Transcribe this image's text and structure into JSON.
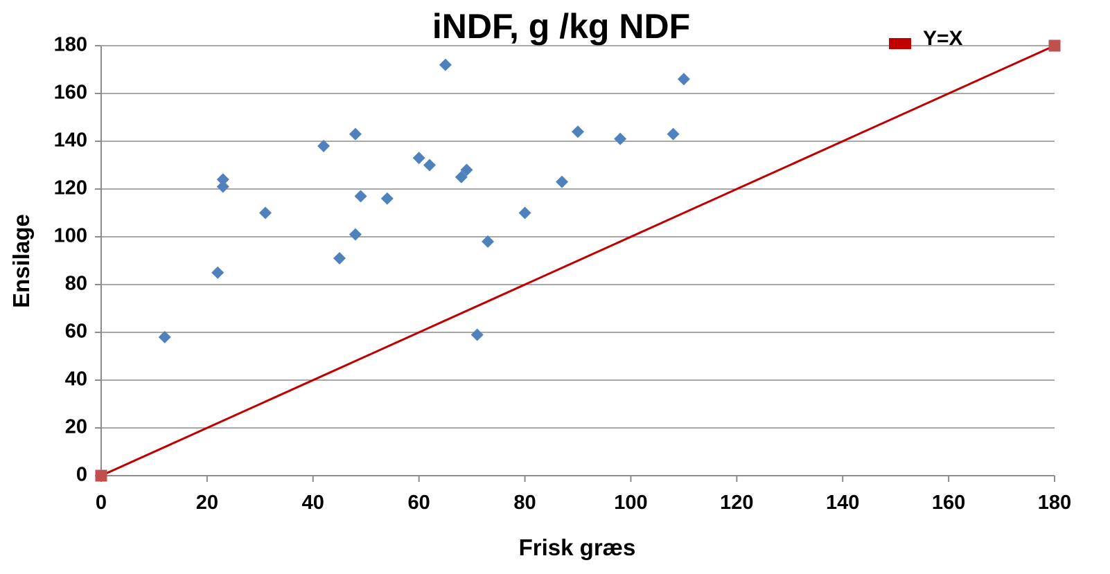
{
  "chart_data": {
    "type": "scatter",
    "title": "iNDF, g /kg NDF",
    "xlabel": "Frisk græs",
    "ylabel": "Ensilage",
    "xlim": [
      0,
      180
    ],
    "ylim": [
      0,
      180
    ],
    "x_ticks": [
      "0",
      "20",
      "40",
      "60",
      "80",
      "100",
      "120",
      "140",
      "160",
      "180"
    ],
    "y_ticks": [
      "0",
      "20",
      "40",
      "60",
      "80",
      "100",
      "120",
      "140",
      "160",
      "180"
    ],
    "grid": "horizontal",
    "legend": {
      "position": "top-right",
      "entries": [
        "Y=X"
      ]
    },
    "series": [
      {
        "marker": "diamond",
        "color": "#4f81bd",
        "points": [
          {
            "x": 12,
            "y": 58
          },
          {
            "x": 22,
            "y": 85
          },
          {
            "x": 23,
            "y": 124
          },
          {
            "x": 23,
            "y": 121
          },
          {
            "x": 31,
            "y": 110
          },
          {
            "x": 42,
            "y": 138
          },
          {
            "x": 45,
            "y": 91
          },
          {
            "x": 48,
            "y": 143
          },
          {
            "x": 48,
            "y": 101
          },
          {
            "x": 49,
            "y": 117
          },
          {
            "x": 54,
            "y": 116
          },
          {
            "x": 60,
            "y": 133
          },
          {
            "x": 62,
            "y": 130
          },
          {
            "x": 65,
            "y": 172
          },
          {
            "x": 68,
            "y": 125
          },
          {
            "x": 69,
            "y": 128
          },
          {
            "x": 71,
            "y": 59
          },
          {
            "x": 73,
            "y": 98
          },
          {
            "x": 80,
            "y": 110
          },
          {
            "x": 87,
            "y": 123
          },
          {
            "x": 90,
            "y": 144
          },
          {
            "x": 98,
            "y": 141
          },
          {
            "x": 108,
            "y": 143
          },
          {
            "x": 110,
            "y": 166
          }
        ]
      },
      {
        "name": "Y=X",
        "marker": "square",
        "line": true,
        "color": "#c00000",
        "marker_color": "#c0504d",
        "points": [
          {
            "x": 0,
            "y": 0
          },
          {
            "x": 180,
            "y": 180
          }
        ]
      }
    ]
  }
}
